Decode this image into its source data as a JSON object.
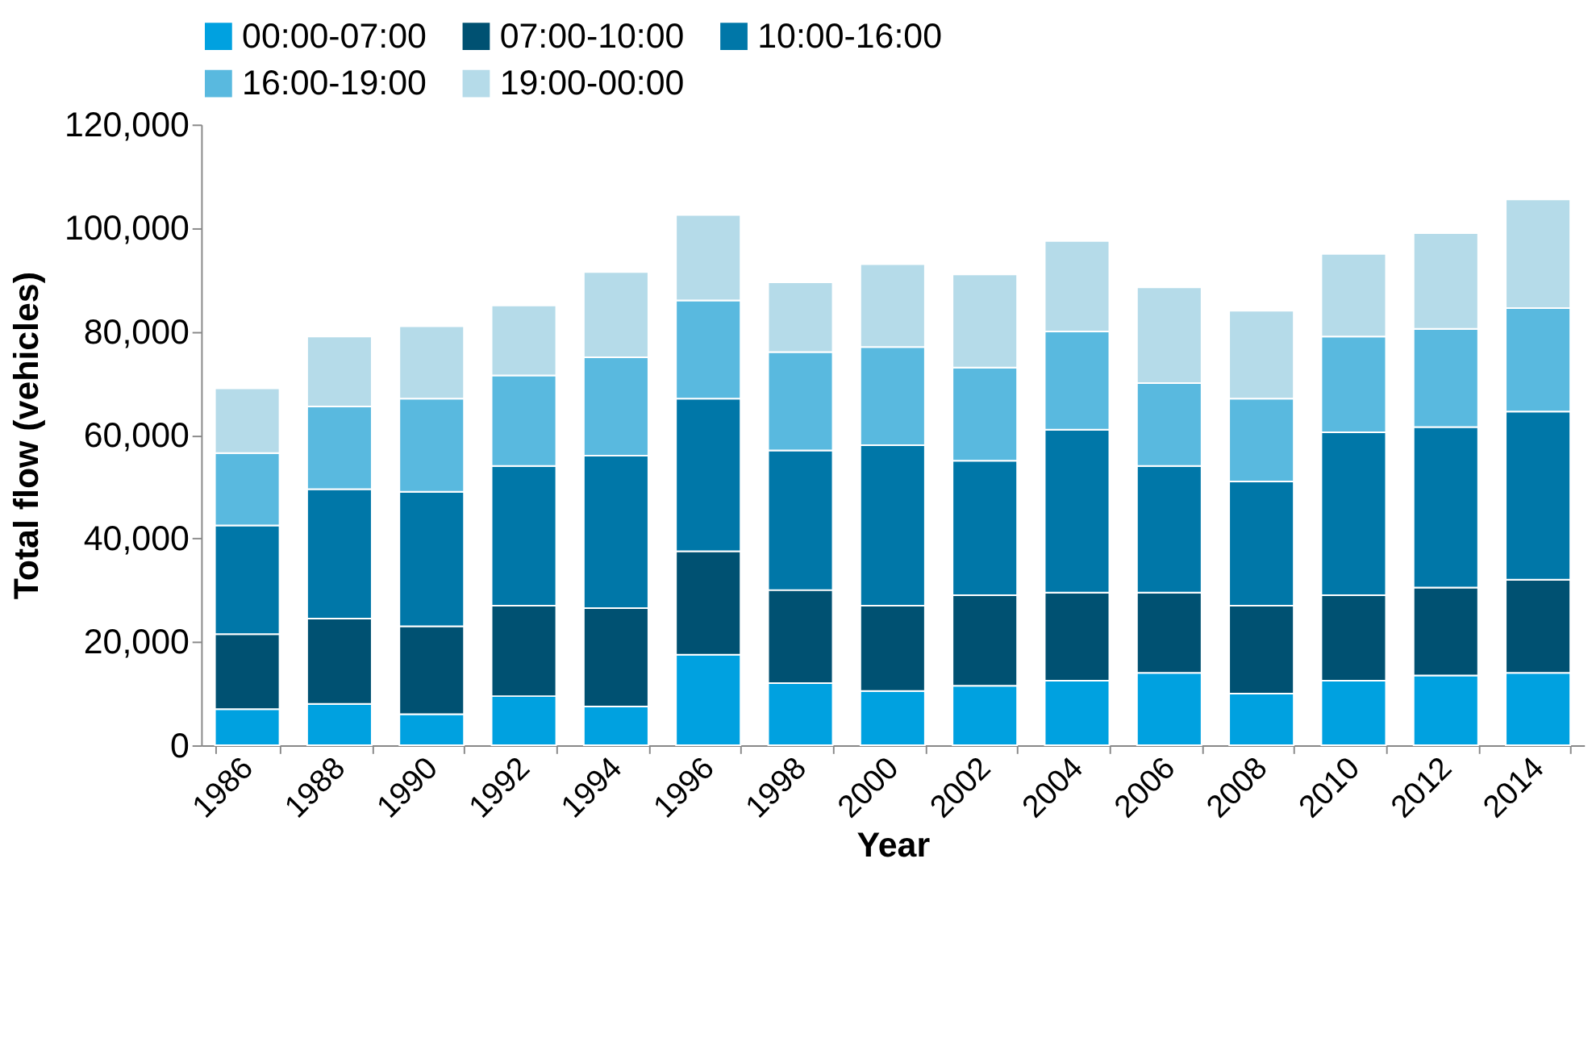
{
  "chart_data": {
    "type": "bar",
    "stacked": true,
    "xlabel": "Year",
    "ylabel": "Total flow (vehicles)",
    "categories": [
      "1986",
      "1988",
      "1990",
      "1992",
      "1994",
      "1996",
      "1998",
      "2000",
      "2002",
      "2004",
      "2006",
      "2008",
      "2010",
      "2012",
      "2014"
    ],
    "series": [
      {
        "name": "00:00-07:00",
        "color": "#00a1e0",
        "values": [
          7000,
          8000,
          6000,
          9500,
          7500,
          17500,
          12000,
          10500,
          11500,
          12500,
          14000,
          10000,
          12500,
          13500,
          14000
        ]
      },
      {
        "name": "07:00-10:00",
        "color": "#005172",
        "values": [
          14500,
          16500,
          17000,
          17500,
          19000,
          20000,
          18000,
          16500,
          17500,
          17000,
          15500,
          17000,
          16500,
          17000,
          18000
        ]
      },
      {
        "name": "10:00-16:00",
        "color": "#0077a8",
        "values": [
          21000,
          25000,
          26000,
          27000,
          29500,
          29500,
          27000,
          31000,
          26000,
          31500,
          24500,
          24000,
          31500,
          31000,
          32500
        ]
      },
      {
        "name": "16:00-19:00",
        "color": "#59b9df",
        "values": [
          14000,
          16000,
          18000,
          17500,
          19000,
          19000,
          19000,
          19000,
          18000,
          19000,
          16000,
          16000,
          18500,
          19000,
          20000
        ]
      },
      {
        "name": "19:00-00:00",
        "color": "#b5dbe9",
        "values": [
          12500,
          13500,
          14000,
          13500,
          16500,
          16500,
          13500,
          16000,
          18000,
          17500,
          18500,
          17000,
          16000,
          18500,
          21000
        ]
      }
    ],
    "ylim": [
      0,
      120000
    ],
    "yticks": [
      {
        "value": 0,
        "label": "0"
      },
      {
        "value": 20000,
        "label": "20,000"
      },
      {
        "value": 40000,
        "label": "40,000"
      },
      {
        "value": 60000,
        "label": "60,000"
      },
      {
        "value": 80000,
        "label": "80,000"
      },
      {
        "value": 100000,
        "label": "100,000"
      },
      {
        "value": 120000,
        "label": "120,000"
      }
    ],
    "grid": false,
    "legend": "top"
  }
}
